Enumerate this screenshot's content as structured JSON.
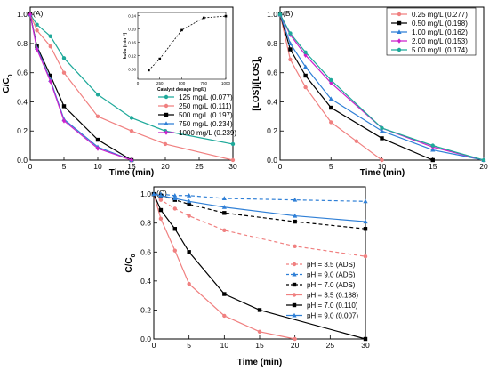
{
  "chart_data": [
    {
      "panel": "(A)",
      "type": "line",
      "xlabel": "Time (min)",
      "ylabel": "C/C0",
      "xlim": [
        0,
        30
      ],
      "ylim": [
        0,
        1.05
      ],
      "xticks": [
        0,
        5,
        10,
        15,
        20,
        25,
        30
      ],
      "yticks": [
        0.0,
        0.2,
        0.4,
        0.6,
        0.8,
        1.0
      ],
      "legend_position": "center-right",
      "series": [
        {
          "name": "125 mg/L (0.077)",
          "color": "#1fa99a",
          "marker": "circle",
          "x": [
            0,
            1,
            3,
            5,
            10,
            15,
            20,
            30
          ],
          "y": [
            1.0,
            0.93,
            0.85,
            0.7,
            0.45,
            0.29,
            0.2,
            0.11
          ]
        },
        {
          "name": "250 mg/L (0.111)",
          "color": "#f08080",
          "marker": "circle",
          "x": [
            0,
            1,
            3,
            5,
            10,
            15,
            20,
            30
          ],
          "y": [
            1.0,
            0.89,
            0.78,
            0.6,
            0.3,
            0.2,
            0.11,
            0.0
          ]
        },
        {
          "name": "500 mg/L (0.197)",
          "color": "#000000",
          "marker": "square",
          "x": [
            0,
            1,
            3,
            5,
            10,
            15
          ],
          "y": [
            1.0,
            0.78,
            0.58,
            0.37,
            0.14,
            0.0
          ]
        },
        {
          "name": "750 mg/L (0.234)",
          "color": "#2f7fd6",
          "marker": "triangle",
          "x": [
            0,
            1,
            3,
            5,
            10,
            15
          ],
          "y": [
            1.0,
            0.77,
            0.55,
            0.28,
            0.09,
            0.0
          ]
        },
        {
          "name": "1000 mg/L (0.239)",
          "color": "#cc22cc",
          "marker": "diamond",
          "x": [
            0,
            1,
            3,
            5,
            10,
            15
          ],
          "y": [
            1.0,
            0.76,
            0.54,
            0.27,
            0.08,
            0.0
          ]
        }
      ],
      "inset": {
        "type": "line",
        "xlabel": "Catalyst dosage (mg/L)",
        "ylabel": "kobs (min⁻¹)",
        "xlim": [
          0,
          1000
        ],
        "ylim": [
          0.05,
          0.25
        ],
        "xticks": [
          0,
          250,
          500,
          750,
          1000
        ],
        "yticks": [
          0.08,
          0.12,
          0.16,
          0.2,
          0.24
        ],
        "x": [
          125,
          250,
          500,
          750,
          1000
        ],
        "y": [
          0.077,
          0.111,
          0.197,
          0.234,
          0.239
        ]
      }
    },
    {
      "panel": "(B)",
      "type": "line",
      "xlabel": "Time (min)",
      "ylabel": "[LOS]/[LOS]0",
      "xlim": [
        0,
        20
      ],
      "ylim": [
        0,
        1.05
      ],
      "xticks": [
        0,
        5,
        10,
        15,
        20
      ],
      "yticks": [
        0.0,
        0.2,
        0.4,
        0.6,
        0.8,
        1.0
      ],
      "legend_position": "top-right",
      "series": [
        {
          "name": "0.25 mg/L (0.277)",
          "color": "#f08080",
          "marker": "circle",
          "x": [
            0,
            1,
            2.5,
            5,
            7.5,
            10
          ],
          "y": [
            1.0,
            0.69,
            0.5,
            0.26,
            0.13,
            0.0
          ]
        },
        {
          "name": "0.50 mg/L (0.198)",
          "color": "#000000",
          "marker": "square",
          "x": [
            0,
            1,
            2.5,
            5,
            10,
            15
          ],
          "y": [
            1.0,
            0.76,
            0.58,
            0.36,
            0.15,
            0.0
          ]
        },
        {
          "name": "1.00 mg/L (0.162)",
          "color": "#2f7fd6",
          "marker": "triangle",
          "x": [
            0,
            1,
            2.5,
            5,
            10,
            15,
            20
          ],
          "y": [
            1.0,
            0.8,
            0.64,
            0.42,
            0.2,
            0.07,
            0.0
          ]
        },
        {
          "name": "2.00 mg/L (0.153)",
          "color": "#cc22cc",
          "marker": "diamond",
          "x": [
            0,
            1,
            2.5,
            5,
            10,
            15,
            20
          ],
          "y": [
            1.0,
            0.86,
            0.72,
            0.53,
            0.22,
            0.09,
            0.0
          ]
        },
        {
          "name": "5.00 mg/L (0.174)",
          "color": "#1fa99a",
          "marker": "circle",
          "x": [
            0,
            1,
            2.5,
            5,
            10,
            15,
            20
          ],
          "y": [
            1.0,
            0.87,
            0.74,
            0.55,
            0.22,
            0.1,
            0.0
          ]
        }
      ]
    },
    {
      "panel": "(C)",
      "type": "line",
      "xlabel": "Time (min)",
      "ylabel": "C/C0",
      "xlim": [
        0,
        30
      ],
      "ylim": [
        0,
        1.05
      ],
      "xticks": [
        0,
        5,
        10,
        15,
        20,
        25,
        30
      ],
      "yticks": [
        0.0,
        0.2,
        0.4,
        0.6,
        0.8,
        1.0
      ],
      "legend_position": "bottom-right",
      "series": [
        {
          "name": "pH = 3.5 (ADS)",
          "color": "#f08080",
          "marker": "circle",
          "dashed": true,
          "x": [
            0,
            1,
            3,
            5,
            10,
            20,
            30
          ],
          "y": [
            1.0,
            0.96,
            0.9,
            0.85,
            0.75,
            0.64,
            0.57
          ]
        },
        {
          "name": "pH = 9.0 (ADS)",
          "color": "#2f7fd6",
          "marker": "triangle",
          "dashed": true,
          "x": [
            0,
            1,
            3,
            5,
            10,
            20,
            30
          ],
          "y": [
            1.0,
            1.0,
            0.99,
            0.99,
            0.97,
            0.96,
            0.95
          ]
        },
        {
          "name": "pH = 7.0 (ADS)",
          "color": "#000000",
          "marker": "square",
          "dashed": true,
          "x": [
            0,
            1,
            3,
            5,
            10,
            20,
            30
          ],
          "y": [
            1.0,
            0.99,
            0.96,
            0.93,
            0.87,
            0.81,
            0.76
          ]
        },
        {
          "name": "pH = 3.5 (0.188)",
          "color": "#f08080",
          "marker": "circle",
          "dashed": false,
          "x": [
            0,
            1,
            3,
            5,
            10,
            15,
            20
          ],
          "y": [
            1.0,
            0.83,
            0.61,
            0.38,
            0.16,
            0.05,
            0.0
          ]
        },
        {
          "name": "pH = 7.0 (0.110)",
          "color": "#000000",
          "marker": "square",
          "dashed": false,
          "x": [
            0,
            1,
            3,
            5,
            10,
            15,
            30
          ],
          "y": [
            1.0,
            0.89,
            0.76,
            0.6,
            0.31,
            0.2,
            0.0
          ]
        },
        {
          "name": "pH = 9.0 (0.007)",
          "color": "#2f7fd6",
          "marker": "triangle",
          "dashed": false,
          "x": [
            0,
            1,
            3,
            5,
            10,
            20,
            30
          ],
          "y": [
            1.0,
            0.99,
            0.97,
            0.95,
            0.91,
            0.85,
            0.81
          ]
        }
      ]
    }
  ]
}
